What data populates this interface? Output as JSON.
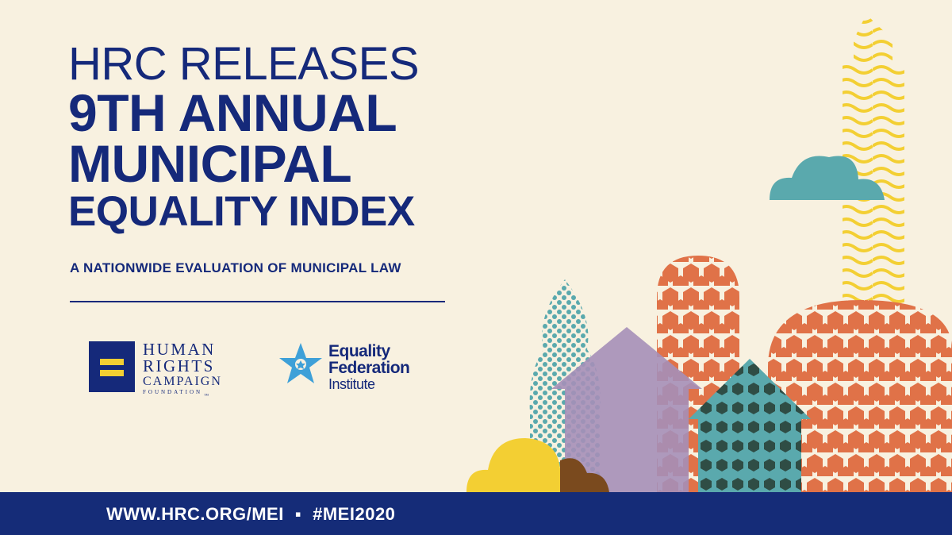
{
  "headline": {
    "line1": "HRC RELEASES",
    "line2": "9TH ANNUAL",
    "line3": "MUNICIPAL",
    "line4": "EQUALITY INDEX"
  },
  "subtitle": "A NATIONWIDE EVALUATION OF MUNICIPAL LAW",
  "hrc_logo": {
    "word1": "HUMAN",
    "word2": "RIGHTS",
    "word3": "CAMPAIGN",
    "word4": "FOUNDATION",
    "tm": "™",
    "icon": "equal-sign-logo-icon"
  },
  "efi_logo": {
    "line1": "Equality",
    "line2": "Federation",
    "line3": "Institute",
    "icon": "star-logo-icon"
  },
  "footer": {
    "url": "WWW.HRC.ORG/MEI",
    "separator": "▪",
    "hashtag": "#MEI2020"
  },
  "colors": {
    "background": "#f8f1e0",
    "navy": "#15297a",
    "yellow": "#f3cf33",
    "orange": "#e07248",
    "teal": "#5aa9ad",
    "purple": "#a58fb8",
    "light_blue": "#3ea0d8"
  }
}
